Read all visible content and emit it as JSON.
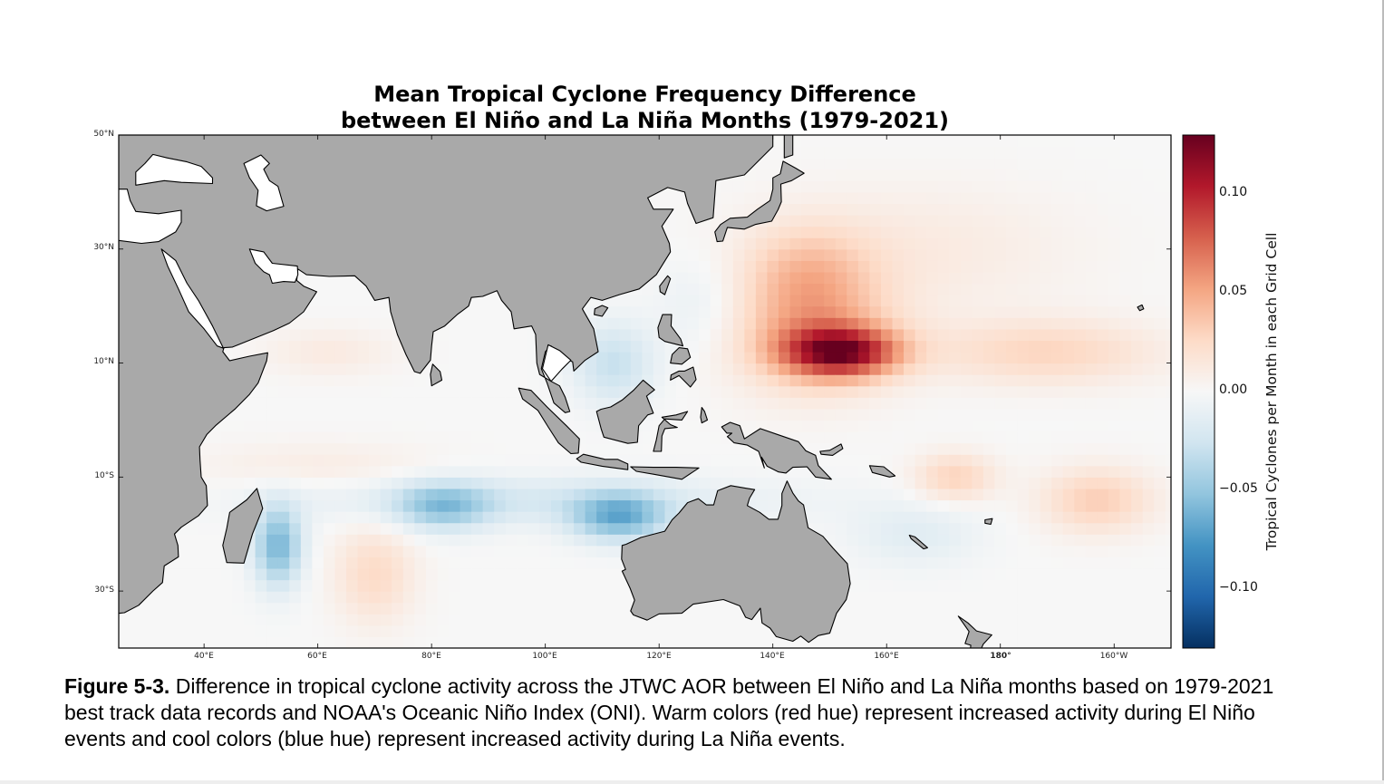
{
  "figure": {
    "title_line1": "Mean Tropical Cyclone Frequency Difference",
    "title_line2": "between El Niño and La Niña Months (1979-2021)",
    "caption_label": "Figure 5-3.",
    "caption_text": " Difference in tropical cyclone activity across the JTWC AOR between El Niño and La Niña months based on 1979-2021 best track data records and NOAA's Oceanic Niño Index (ONI). Warm colors (red hue) represent increased activity during El Niño events and cool colors (blue hue) represent increased activity during La Niña events."
  },
  "chart_data": {
    "type": "heatmap",
    "projection": "equirectangular",
    "lon_range": [
      25,
      210
    ],
    "lat_range": [
      -40,
      50
    ],
    "x_ticks": [
      {
        "lon": 40,
        "label": "40°E"
      },
      {
        "lon": 60,
        "label": "60°E"
      },
      {
        "lon": 80,
        "label": "80°E"
      },
      {
        "lon": 100,
        "label": "100°E"
      },
      {
        "lon": 120,
        "label": "120°E"
      },
      {
        "lon": 140,
        "label": "140°E"
      },
      {
        "lon": 160,
        "label": "160°E"
      },
      {
        "lon": 180,
        "label": "180°"
      },
      {
        "lon": 200,
        "label": "160°W"
      }
    ],
    "y_ticks": [
      {
        "lat": 50,
        "label": "50°N"
      },
      {
        "lat": 30,
        "label": "30°N"
      },
      {
        "lat": 10,
        "label": "10°N"
      },
      {
        "lat": -10,
        "label": "10°S"
      },
      {
        "lat": -30,
        "label": "30°S"
      }
    ],
    "colorbar": {
      "label": "Tropical Cyclones per Month in each Grid Cell",
      "colormap": "RdBu_r",
      "vmin": -0.13,
      "vmax": 0.13,
      "ticks": [
        {
          "value": 0.1,
          "label": "0.10"
        },
        {
          "value": 0.05,
          "label": "0.05"
        },
        {
          "value": 0.0,
          "label": "0.00"
        },
        {
          "value": -0.05,
          "label": "−0.05"
        },
        {
          "value": -0.1,
          "label": "−0.10"
        }
      ]
    },
    "land_color": "#a9a9a9",
    "grid_cell_deg": 2,
    "anomaly_centers": [
      {
        "lon": 152,
        "lat": 12,
        "value": 0.1,
        "sx": 7,
        "sy": 3
      },
      {
        "lon": 147,
        "lat": 15,
        "value": 0.045,
        "sx": 10,
        "sy": 7
      },
      {
        "lon": 146,
        "lat": 26,
        "value": 0.03,
        "sx": 8,
        "sy": 6
      },
      {
        "lon": 165,
        "lat": 30,
        "value": 0.012,
        "sx": 20,
        "sy": 8
      },
      {
        "lon": 188,
        "lat": 12,
        "value": 0.028,
        "sx": 14,
        "sy": 4
      },
      {
        "lon": 172,
        "lat": -10,
        "value": 0.03,
        "sx": 5,
        "sy": 3
      },
      {
        "lon": 197,
        "lat": -14,
        "value": 0.032,
        "sx": 7,
        "sy": 4
      },
      {
        "lon": 62,
        "lat": 12,
        "value": 0.012,
        "sx": 8,
        "sy": 3
      },
      {
        "lon": 60,
        "lat": -8,
        "value": 0.01,
        "sx": 15,
        "sy": 3
      },
      {
        "lon": 70,
        "lat": -27,
        "value": 0.025,
        "sx": 5,
        "sy": 6
      },
      {
        "lon": 53,
        "lat": -22,
        "value": -0.06,
        "sx": 3,
        "sy": 5
      },
      {
        "lon": 82,
        "lat": -15,
        "value": -0.045,
        "sx": 6,
        "sy": 3
      },
      {
        "lon": 113,
        "lat": -17,
        "value": -0.06,
        "sx": 6,
        "sy": 3
      },
      {
        "lon": 112,
        "lat": 10,
        "value": -0.03,
        "sx": 5,
        "sy": 5
      },
      {
        "lon": 98,
        "lat": -14,
        "value": -0.02,
        "sx": 30,
        "sy": 3
      },
      {
        "lon": 165,
        "lat": -20,
        "value": -0.015,
        "sx": 8,
        "sy": 4
      },
      {
        "lon": 128,
        "lat": 20,
        "value": -0.012,
        "sx": 6,
        "sy": 6
      }
    ]
  }
}
